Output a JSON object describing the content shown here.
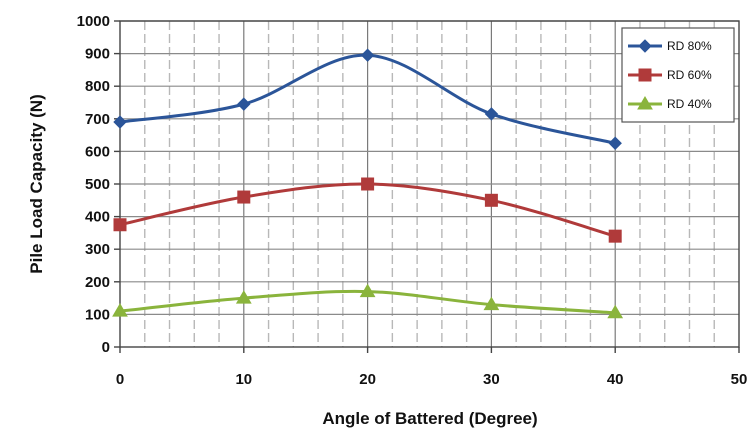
{
  "chart_data": {
    "type": "line",
    "title": "",
    "xlabel": "Angle of Battered (Degree)",
    "ylabel": "Pile Load Capacity (N)",
    "xlim": [
      0,
      50
    ],
    "ylim": [
      0,
      1000
    ],
    "xticks": [
      0,
      10,
      20,
      30,
      40,
      50
    ],
    "yticks": [
      0,
      100,
      200,
      300,
      400,
      500,
      600,
      700,
      800,
      900,
      1000
    ],
    "grid": true,
    "legend_position": "top-right",
    "x": [
      0,
      10,
      20,
      30,
      40
    ],
    "series": [
      {
        "name": "RD 80%",
        "values": [
          690,
          745,
          895,
          715,
          625
        ],
        "color": "#2b5599",
        "marker": "diamond"
      },
      {
        "name": "RD 60%",
        "values": [
          375,
          460,
          500,
          450,
          340
        ],
        "color": "#b03a3a",
        "marker": "square"
      },
      {
        "name": "RD 40%",
        "values": [
          110,
          150,
          170,
          130,
          105
        ],
        "color": "#8ab43c",
        "marker": "triangle"
      }
    ]
  }
}
